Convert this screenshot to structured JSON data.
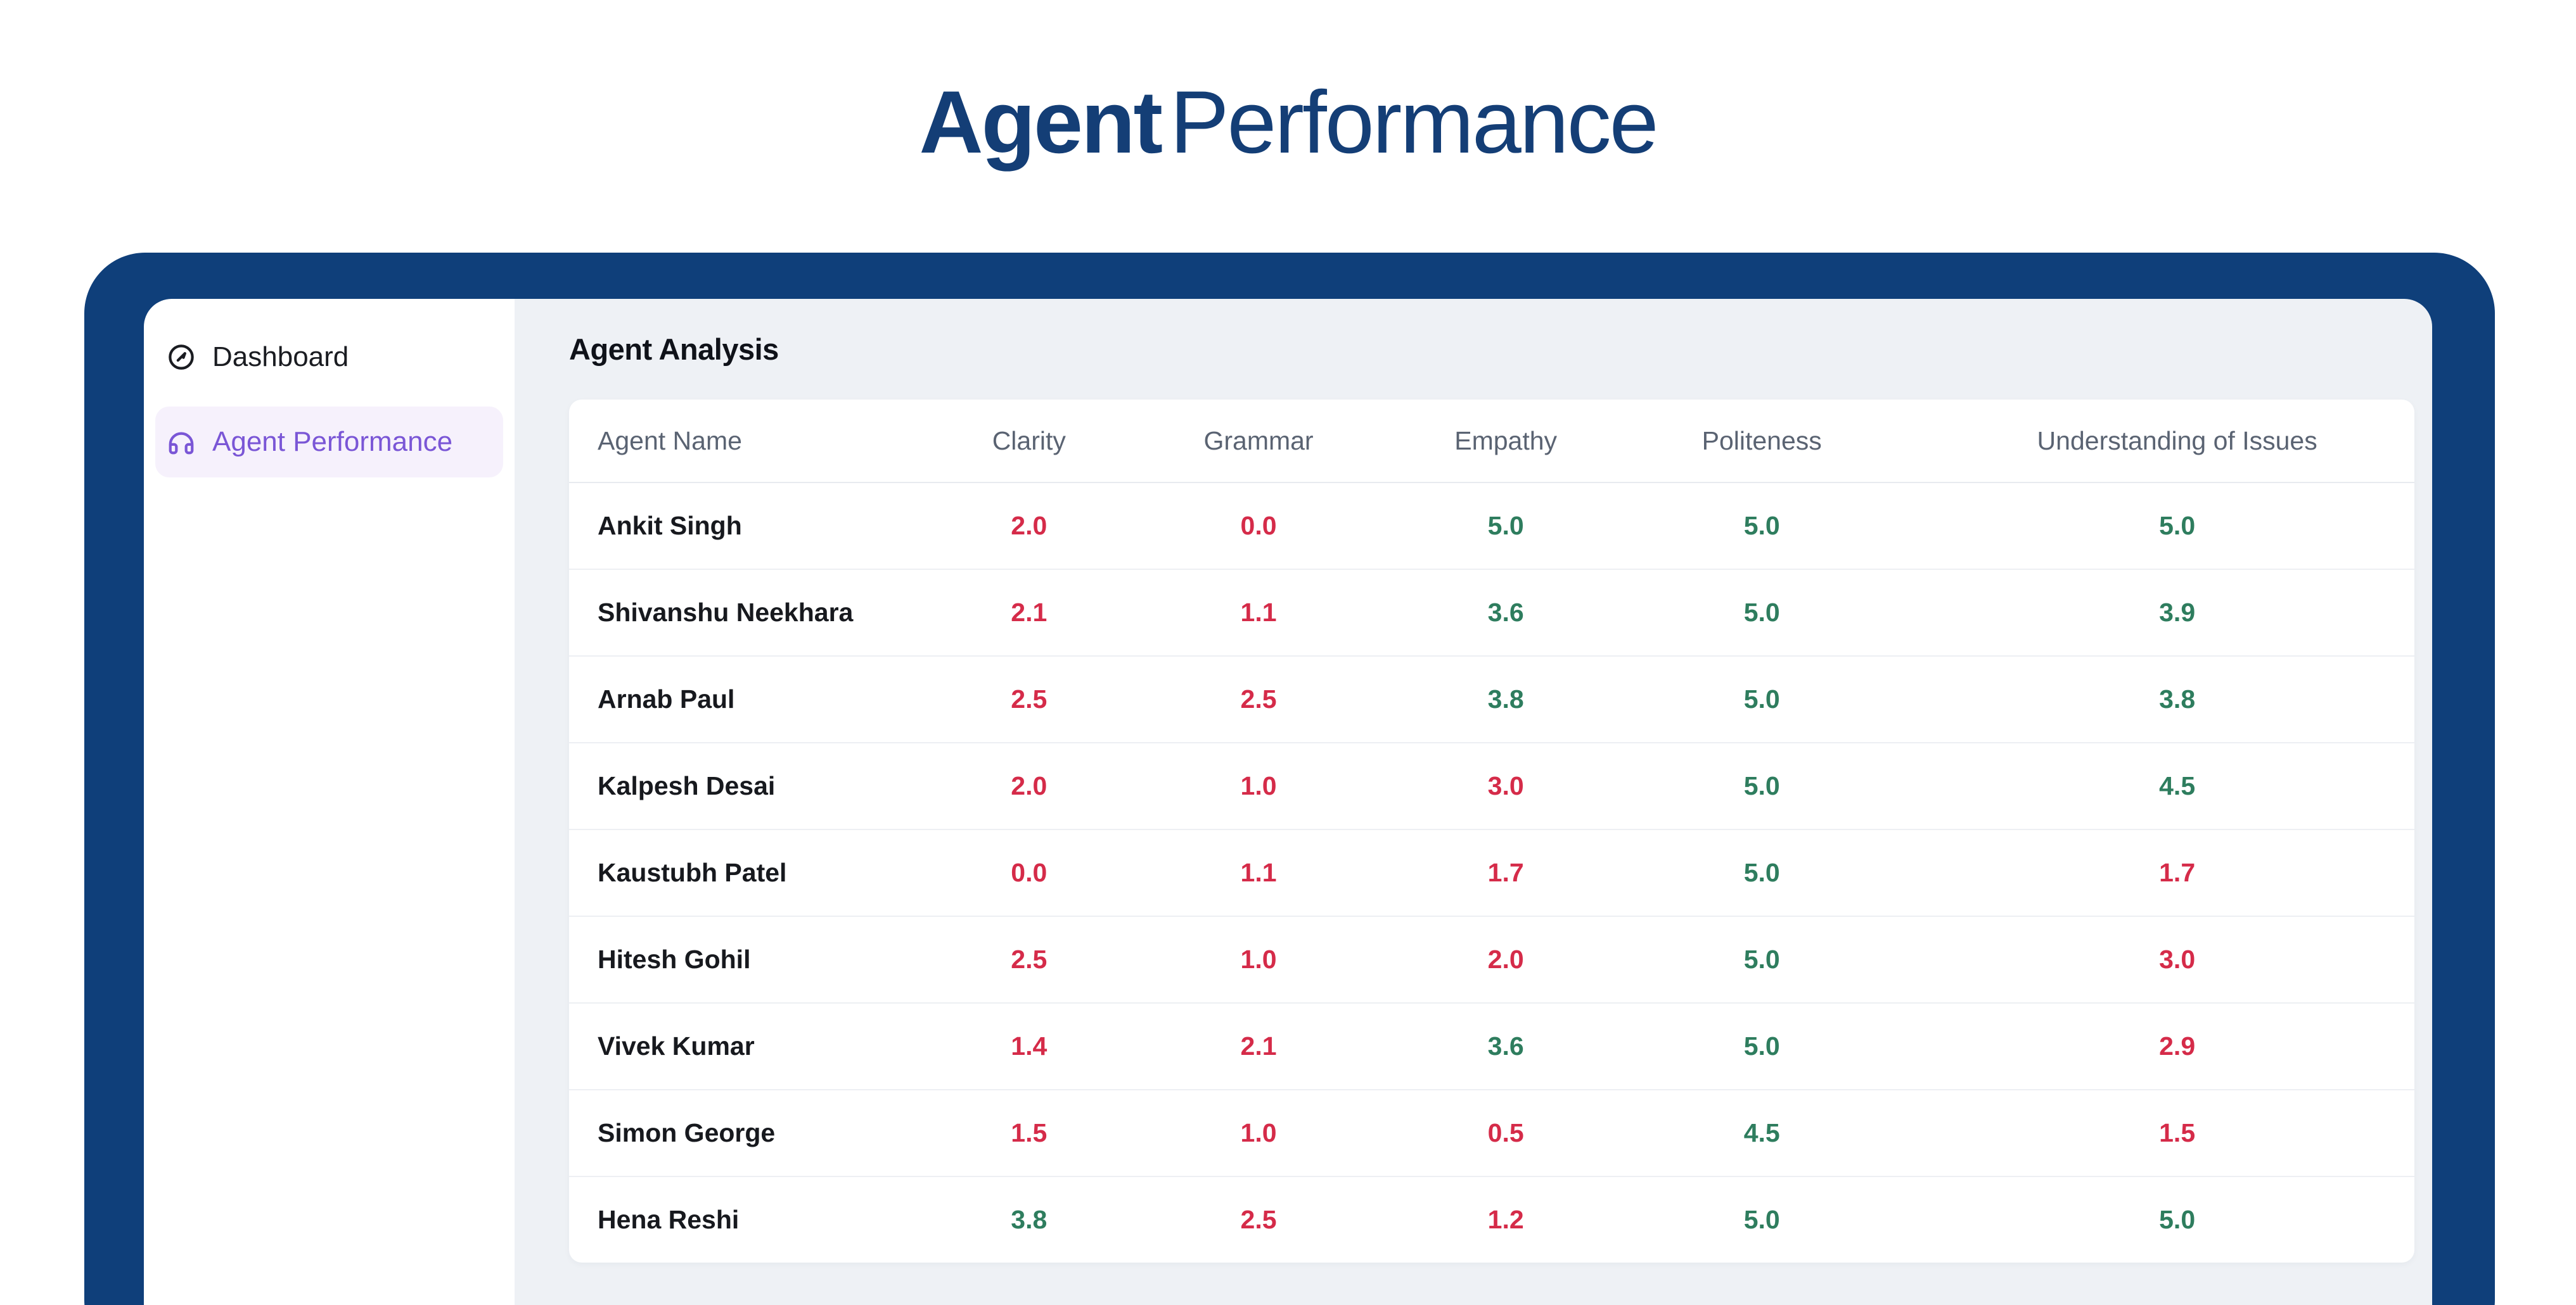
{
  "header": {
    "title_bold": "Agent",
    "title_light": "Performance"
  },
  "sidebar": {
    "items": [
      {
        "label": "Dashboard",
        "icon": "gauge-icon",
        "active": false
      },
      {
        "label": "Agent Performance",
        "icon": "headphones-icon",
        "active": true
      }
    ]
  },
  "main": {
    "heading": "Agent Analysis",
    "table": {
      "columns": [
        "Agent Name",
        "Clarity",
        "Grammar",
        "Empathy",
        "Politeness",
        "Understanding of Issues"
      ],
      "rows": [
        {
          "name": "Ankit Singh",
          "scores": [
            {
              "value": "2.0",
              "tone": "bad"
            },
            {
              "value": "0.0",
              "tone": "bad"
            },
            {
              "value": "5.0",
              "tone": "good"
            },
            {
              "value": "5.0",
              "tone": "good"
            },
            {
              "value": "5.0",
              "tone": "good"
            }
          ]
        },
        {
          "name": "Shivanshu Neekhara",
          "scores": [
            {
              "value": "2.1",
              "tone": "bad"
            },
            {
              "value": "1.1",
              "tone": "bad"
            },
            {
              "value": "3.6",
              "tone": "good"
            },
            {
              "value": "5.0",
              "tone": "good"
            },
            {
              "value": "3.9",
              "tone": "good"
            }
          ]
        },
        {
          "name": "Arnab Paul",
          "scores": [
            {
              "value": "2.5",
              "tone": "bad"
            },
            {
              "value": "2.5",
              "tone": "bad"
            },
            {
              "value": "3.8",
              "tone": "good"
            },
            {
              "value": "5.0",
              "tone": "good"
            },
            {
              "value": "3.8",
              "tone": "good"
            }
          ]
        },
        {
          "name": "Kalpesh Desai",
          "scores": [
            {
              "value": "2.0",
              "tone": "bad"
            },
            {
              "value": "1.0",
              "tone": "bad"
            },
            {
              "value": "3.0",
              "tone": "bad"
            },
            {
              "value": "5.0",
              "tone": "good"
            },
            {
              "value": "4.5",
              "tone": "good"
            }
          ]
        },
        {
          "name": "Kaustubh Patel",
          "scores": [
            {
              "value": "0.0",
              "tone": "bad"
            },
            {
              "value": "1.1",
              "tone": "bad"
            },
            {
              "value": "1.7",
              "tone": "bad"
            },
            {
              "value": "5.0",
              "tone": "good"
            },
            {
              "value": "1.7",
              "tone": "bad"
            }
          ]
        },
        {
          "name": "Hitesh Gohil",
          "scores": [
            {
              "value": "2.5",
              "tone": "bad"
            },
            {
              "value": "1.0",
              "tone": "bad"
            },
            {
              "value": "2.0",
              "tone": "bad"
            },
            {
              "value": "5.0",
              "tone": "good"
            },
            {
              "value": "3.0",
              "tone": "bad"
            }
          ]
        },
        {
          "name": "Vivek Kumar",
          "scores": [
            {
              "value": "1.4",
              "tone": "bad"
            },
            {
              "value": "2.1",
              "tone": "bad"
            },
            {
              "value": "3.6",
              "tone": "good"
            },
            {
              "value": "5.0",
              "tone": "good"
            },
            {
              "value": "2.9",
              "tone": "bad"
            }
          ]
        },
        {
          "name": "Simon George",
          "scores": [
            {
              "value": "1.5",
              "tone": "bad"
            },
            {
              "value": "1.0",
              "tone": "bad"
            },
            {
              "value": "0.5",
              "tone": "bad"
            },
            {
              "value": "4.5",
              "tone": "good"
            },
            {
              "value": "1.5",
              "tone": "bad"
            }
          ]
        },
        {
          "name": "Hena Reshi",
          "scores": [
            {
              "value": "3.8",
              "tone": "good"
            },
            {
              "value": "2.5",
              "tone": "bad"
            },
            {
              "value": "1.2",
              "tone": "bad"
            },
            {
              "value": "5.0",
              "tone": "good"
            },
            {
              "value": "5.0",
              "tone": "good"
            }
          ]
        }
      ]
    }
  },
  "colors": {
    "frame_navy": "#0f3f7a",
    "title_navy": "#143e76",
    "accent_purple": "#7a56d6",
    "active_item_bg": "#f6f1fc",
    "content_bg": "#eef1f5",
    "card_bg": "#ffffff",
    "header_text": "#5a6372",
    "score_good": "#2e7d5e",
    "score_bad": "#d52b49"
  }
}
